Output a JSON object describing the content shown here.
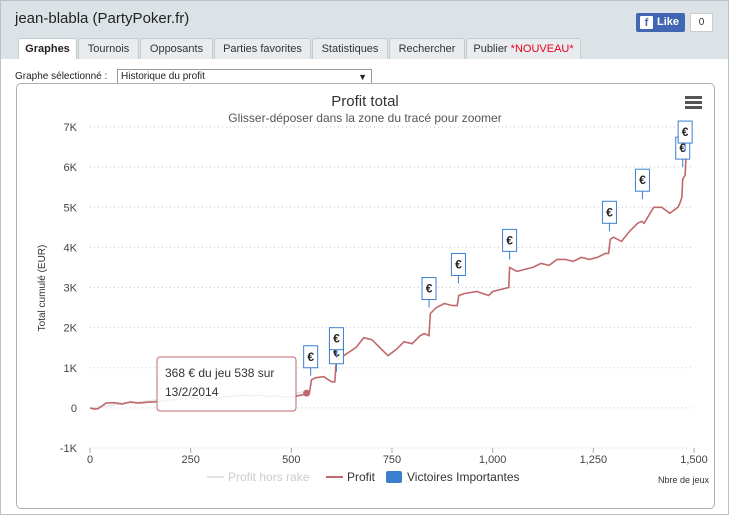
{
  "window": {
    "title": "jean-blabla (PartyPoker.fr)",
    "like_label": "Like",
    "like_count": "0"
  },
  "tabs": [
    {
      "label": "Graphes",
      "active": true
    },
    {
      "label": "Tournois"
    },
    {
      "label": "Opposants"
    },
    {
      "label": "Parties favorites"
    },
    {
      "label": "Statistiques"
    },
    {
      "label": "Rechercher"
    },
    {
      "label": "Publier",
      "badge": "*NOUVEAU*"
    }
  ],
  "graph_select": {
    "label": "Graphe sélectionné :",
    "value": "Historique du profit"
  },
  "tooltip": {
    "line1": "368 € du jeu 538 sur",
    "line2": "13/2/2014"
  },
  "colors": {
    "profit": "#c0686b",
    "rake": "#e3e3e3",
    "victory": "#3a7fcf",
    "tooltip_border": "#c0686b"
  },
  "chart_data": {
    "type": "line",
    "title": "Profit total",
    "subtitle": "Glisser-déposer dans la zone du tracé pour zoomer",
    "xlabel": "Nbre de jeux",
    "ylabel": "Total cumulé (EUR)",
    "xlim": [
      0,
      1500
    ],
    "ylim": [
      -1000,
      7000
    ],
    "x_ticks": [
      0,
      250,
      500,
      750,
      1000,
      1250,
      1500
    ],
    "x_tick_labels": [
      "0",
      "250",
      "500",
      "750",
      "1,000",
      "1,250",
      "1,500"
    ],
    "y_ticks": [
      -1000,
      0,
      1000,
      2000,
      3000,
      4000,
      5000,
      6000,
      7000
    ],
    "y_tick_labels": [
      "-1K",
      "0",
      "1K",
      "2K",
      "3K",
      "4K",
      "5K",
      "6K",
      "7K"
    ],
    "grid": "horizontal dotted",
    "legend_position": "bottom-center",
    "legend": [
      "Profit hors rake",
      "Profit",
      "Victoires Importantes"
    ],
    "series": [
      {
        "name": "Profit",
        "x": [
          0,
          10,
          20,
          30,
          40,
          60,
          80,
          100,
          120,
          140,
          160,
          180,
          200,
          220,
          240,
          260,
          280,
          300,
          320,
          340,
          360,
          380,
          400,
          420,
          440,
          460,
          480,
          500,
          515,
          530,
          538,
          545,
          550,
          560,
          580,
          600,
          608,
          612,
          630,
          660,
          680,
          700,
          720,
          740,
          760,
          780,
          800,
          820,
          830,
          842,
          845,
          860,
          880,
          900,
          912,
          916,
          930,
          960,
          990,
          1000,
          1040,
          1042,
          1060,
          1080,
          1100,
          1120,
          1140,
          1160,
          1180,
          1200,
          1220,
          1240,
          1260,
          1280,
          1288,
          1292,
          1300,
          1320,
          1340,
          1360,
          1370,
          1376,
          1400,
          1420,
          1440,
          1460,
          1465,
          1470,
          1472,
          1478,
          1480
        ],
        "values": [
          0,
          -30,
          -20,
          50,
          120,
          130,
          100,
          150,
          120,
          140,
          150,
          180,
          200,
          220,
          230,
          250,
          230,
          260,
          240,
          280,
          300,
          310,
          300,
          320,
          280,
          300,
          270,
          260,
          300,
          330,
          368,
          380,
          700,
          750,
          780,
          650,
          650,
          1200,
          1300,
          1500,
          1750,
          1700,
          1500,
          1300,
          1450,
          1650,
          1600,
          1800,
          1850,
          1800,
          2350,
          2500,
          2600,
          2550,
          2550,
          2800,
          2850,
          2900,
          2800,
          2900,
          3000,
          3500,
          3400,
          3450,
          3500,
          3600,
          3550,
          3700,
          3700,
          3650,
          3750,
          3700,
          3750,
          3850,
          3850,
          4200,
          4250,
          4150,
          4400,
          4600,
          4650,
          4600,
          5000,
          5000,
          4850,
          5000,
          5100,
          5250,
          5700,
          5800,
          6200
        ]
      },
      {
        "name": "Profit hors rake",
        "x": [
          0,
          50,
          100,
          150,
          200,
          250,
          300,
          350,
          400,
          450,
          500,
          530
        ],
        "values": [
          0,
          60,
          120,
          180,
          250,
          300,
          330,
          370,
          400,
          370,
          340,
          400
        ]
      }
    ],
    "victories": [
      {
        "x": 548,
        "y": 1000
      },
      {
        "x": 612,
        "y": 1100
      },
      {
        "x": 612,
        "y": 1450
      },
      {
        "x": 842,
        "y": 2700
      },
      {
        "x": 915,
        "y": 3300
      },
      {
        "x": 1042,
        "y": 3900
      },
      {
        "x": 1290,
        "y": 4600
      },
      {
        "x": 1372,
        "y": 5400
      },
      {
        "x": 1472,
        "y": 6200
      },
      {
        "x": 1478,
        "y": 6600
      }
    ]
  }
}
